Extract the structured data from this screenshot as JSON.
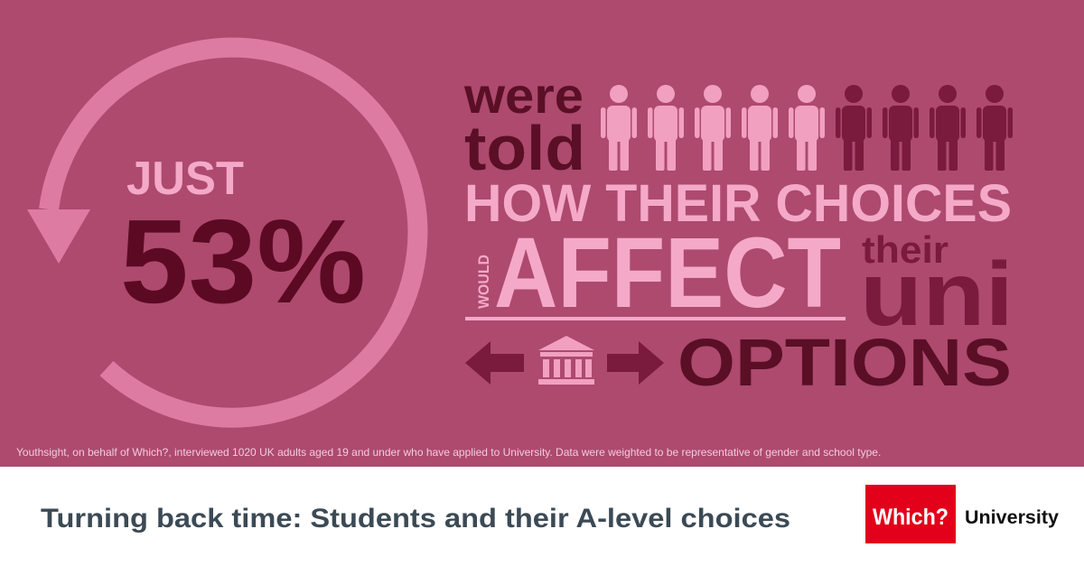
{
  "infographic": {
    "lead": "JUST",
    "stat": "53%",
    "line1": "were",
    "line2": "told",
    "line3": "HOW THEIR CHOICES",
    "small_vertical": "WOULD",
    "big_word": "AFFECT",
    "their": "their",
    "uni": "uni",
    "options": "OPTIONS",
    "footnote": "Youthsight, on behalf of Which?, interviewed 1020 UK adults aged 19 and under who have applied to University. Data were weighted to be representative of gender and school type."
  },
  "footer": {
    "title": "Turning back time: Students and their A-level choices",
    "logo": "Which?",
    "brand": "University"
  }
}
